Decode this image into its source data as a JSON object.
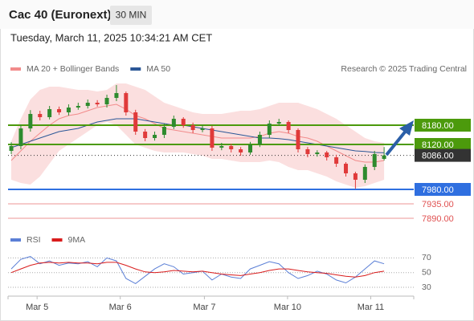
{
  "header": {
    "title": "Cac 40 (Euronext)",
    "timeframe": "30 MIN",
    "datetime": "Tuesday, March 11, 2025 10:34:21 AM CET",
    "credit": "Research © 2025 Trading Central"
  },
  "chart_data": [
    {
      "type": "candlestick",
      "x": [
        0,
        1,
        2,
        3,
        4,
        5,
        6,
        7,
        8,
        9,
        10,
        11,
        12,
        13,
        14,
        15,
        16,
        17,
        18,
        19,
        20,
        21,
        22,
        23,
        24,
        25,
        26,
        27,
        28,
        29,
        30,
        31,
        32,
        33,
        34,
        35,
        36,
        37,
        38,
        39
      ],
      "open": [
        8100,
        8115,
        8170,
        8215,
        8205,
        8230,
        8220,
        8235,
        8240,
        8250,
        8245,
        8265,
        8280,
        8220,
        8160,
        8140,
        8150,
        8175,
        8200,
        8180,
        8165,
        8170,
        8110,
        8115,
        8105,
        8095,
        8120,
        8150,
        8185,
        8190,
        8165,
        8105,
        8090,
        8095,
        8080,
        8060,
        8030,
        8010,
        8050,
        8075
      ],
      "high": [
        8127,
        8182,
        8227,
        8225,
        8240,
        8238,
        8245,
        8250,
        8260,
        8258,
        8275,
        8305,
        8285,
        8228,
        8168,
        8160,
        8185,
        8210,
        8205,
        8188,
        8180,
        8178,
        8125,
        8122,
        8112,
        8128,
        8160,
        8195,
        8200,
        8195,
        8170,
        8112,
        8102,
        8100,
        8088,
        8065,
        8035,
        8058,
        8100,
        8112
      ],
      "low": [
        8090,
        8105,
        8160,
        8195,
        8198,
        8212,
        8210,
        8228,
        8232,
        8238,
        8235,
        8255,
        8210,
        8150,
        8130,
        8132,
        8140,
        8168,
        8172,
        8155,
        8158,
        8100,
        8102,
        8095,
        8085,
        8088,
        8112,
        8140,
        8178,
        8155,
        8095,
        8080,
        8082,
        8070,
        8050,
        8020,
        7982,
        8000,
        8040,
        8070
      ],
      "close": [
        8115,
        8170,
        8215,
        8205,
        8230,
        8220,
        8235,
        8240,
        8250,
        8245,
        8265,
        8280,
        8220,
        8160,
        8140,
        8150,
        8175,
        8200,
        8180,
        8165,
        8170,
        8110,
        8115,
        8105,
        8095,
        8120,
        8150,
        8185,
        8190,
        8165,
        8105,
        8090,
        8095,
        8080,
        8060,
        8030,
        8010,
        8050,
        8090,
        8086
      ],
      "up_color": "#2e8b2e",
      "down_color": "#e03a3a",
      "series": [
        {
          "name": "MA 20 + Bollinger Bands",
          "color": "#f28b8b",
          "values": [
            8070,
            8100,
            8130,
            8155,
            8180,
            8200,
            8210,
            8215,
            8225,
            8235,
            8240,
            8245,
            8230,
            8210,
            8200,
            8185,
            8170,
            8165,
            8160,
            8155,
            8150,
            8145,
            8140,
            8140,
            8140,
            8140,
            8145,
            8155,
            8160,
            8155,
            8145,
            8140,
            8130,
            8115,
            8100,
            8085,
            8070,
            8065,
            8065,
            8070
          ],
          "upper": [
            8130,
            8200,
            8260,
            8290,
            8300,
            8300,
            8295,
            8290,
            8290,
            8285,
            8290,
            8310,
            8310,
            8300,
            8290,
            8270,
            8250,
            8240,
            8230,
            8220,
            8215,
            8215,
            8215,
            8220,
            8225,
            8225,
            8230,
            8240,
            8250,
            8250,
            8250,
            8240,
            8230,
            8215,
            8200,
            8180,
            8160,
            8140,
            8130,
            8125
          ],
          "lower": [
            8010,
            8000,
            7995,
            8020,
            8060,
            8100,
            8120,
            8140,
            8160,
            8180,
            8190,
            8180,
            8150,
            8120,
            8110,
            8100,
            8095,
            8095,
            8095,
            8090,
            8085,
            8075,
            8075,
            8070,
            8065,
            8065,
            8065,
            8070,
            8065,
            8050,
            8040,
            8040,
            8030,
            8020,
            8005,
            7995,
            7985,
            7990,
            8000,
            8010
          ]
        },
        {
          "name": "MA 50",
          "color": "#2b5797",
          "values": [
            8110,
            8120,
            8130,
            8140,
            8150,
            8160,
            8165,
            8170,
            8180,
            8190,
            8195,
            8200,
            8200,
            8200,
            8195,
            8190,
            8185,
            8180,
            8180,
            8175,
            8170,
            8165,
            8160,
            8155,
            8150,
            8145,
            8140,
            8140,
            8138,
            8135,
            8130,
            8125,
            8120,
            8115,
            8110,
            8105,
            8100,
            8098,
            8095,
            8094
          ]
        }
      ],
      "levels": [
        {
          "value": 8180,
          "label": "8180.00",
          "color": "#4c9a0c",
          "box": true
        },
        {
          "value": 8120,
          "label": "8120.00",
          "color": "#4c9a0c",
          "box": true
        },
        {
          "value": 8086,
          "label": "8086.00",
          "color": "#333333",
          "box": true
        },
        {
          "value": 7980,
          "label": "7980.00",
          "color": "#2f6fe0",
          "box": true
        },
        {
          "value": 7935,
          "label": "7935.00",
          "color": "#e05050",
          "box": false
        },
        {
          "value": 7890,
          "label": "7890.00",
          "color": "#e05050",
          "box": false
        }
      ],
      "xlim": [
        -0.34,
        42.1
      ],
      "ylim": [
        7860,
        8320
      ]
    },
    {
      "type": "line",
      "x": [
        0,
        1,
        2,
        3,
        4,
        5,
        6,
        7,
        8,
        9,
        10,
        11,
        12,
        13,
        14,
        15,
        16,
        17,
        18,
        19,
        20,
        21,
        22,
        23,
        24,
        25,
        26,
        27,
        28,
        29,
        30,
        31,
        32,
        33,
        34,
        35,
        36,
        37,
        38,
        39
      ],
      "series": [
        {
          "name": "RSI",
          "color": "#5b7fd6",
          "values": [
            55,
            68,
            72,
            62,
            66,
            60,
            63,
            62,
            65,
            58,
            70,
            66,
            42,
            35,
            45,
            55,
            62,
            58,
            48,
            50,
            52,
            40,
            48,
            44,
            42,
            55,
            60,
            65,
            62,
            50,
            42,
            46,
            52,
            48,
            40,
            36,
            44,
            55,
            66,
            62
          ]
        },
        {
          "name": "9MA",
          "color": "#d91c1c",
          "values": [
            50,
            55,
            60,
            63,
            64,
            63,
            64,
            63,
            63,
            62,
            64,
            64,
            60,
            55,
            51,
            50,
            51,
            53,
            52,
            51,
            52,
            50,
            48,
            47,
            46,
            48,
            50,
            53,
            55,
            55,
            53,
            51,
            50,
            49,
            47,
            45,
            44,
            46,
            50,
            52
          ]
        }
      ],
      "xlim": [
        -0.34,
        42.1
      ],
      "ylim": [
        18,
        77
      ],
      "yticks": [
        70,
        50,
        30
      ],
      "xticks": [
        {
          "value": 2.7,
          "label": "Mar 5"
        },
        {
          "value": 11.4,
          "label": "Mar 6"
        },
        {
          "value": 20.2,
          "label": "Mar 7"
        },
        {
          "value": 28.9,
          "label": "Mar 10"
        },
        {
          "value": 37.6,
          "label": "Mar 11"
        }
      ]
    }
  ]
}
